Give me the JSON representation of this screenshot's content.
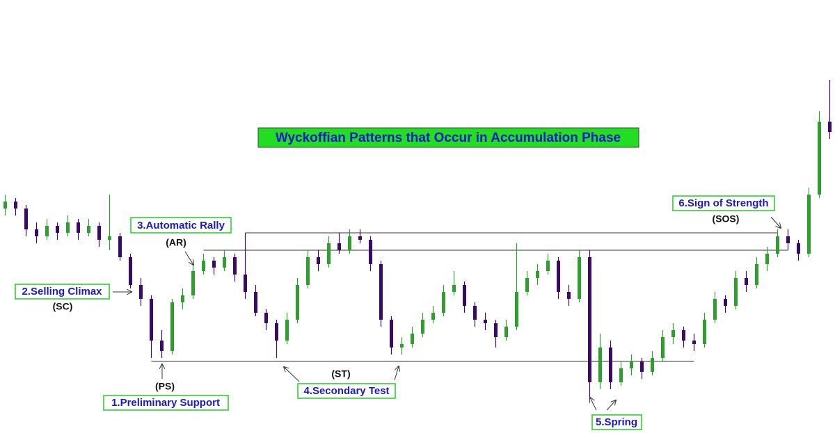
{
  "chart_data": {
    "type": "candlestick",
    "title": "Wyckoffian Patterns that Occur in Accumulation Phase",
    "annotations": {
      "ar_label": "3.Automatic Rally",
      "ar": "(AR)",
      "sc_label": "2.Selling Climax",
      "sc": "(SC)",
      "ps": "(PS)",
      "ps_label": "1.Preliminary Support",
      "st": "(ST)",
      "st_label": "4.Secondary Test",
      "spring_label": "5.Spring",
      "sos_label": "6.Sign of Strength",
      "sos": "(SOS)"
    },
    "up_color": "#2e9e2e",
    "down_color": "#3a0a68",
    "ylim": [
      0,
      100
    ],
    "levels": [
      {
        "value": 16,
        "from": 14,
        "to": 66
      },
      {
        "value": 48,
        "from": 19,
        "to": 75
      },
      {
        "value": 53,
        "from": 23,
        "to": 74
      }
    ],
    "candles": [
      [
        60,
        64,
        58,
        62
      ],
      [
        62,
        63,
        58,
        60
      ],
      [
        60,
        61,
        52,
        54
      ],
      [
        54,
        56,
        50,
        52
      ],
      [
        52,
        57,
        51,
        55
      ],
      [
        55,
        56,
        51,
        53
      ],
      [
        53,
        58,
        52,
        56
      ],
      [
        56,
        57,
        51,
        53
      ],
      [
        53,
        57,
        52,
        55
      ],
      [
        55,
        56,
        49,
        51
      ],
      [
        51,
        64,
        48,
        52
      ],
      [
        52,
        53,
        45,
        46
      ],
      [
        46,
        47,
        37,
        38
      ],
      [
        38,
        40,
        32,
        34
      ],
      [
        34,
        35,
        17,
        22
      ],
      [
        22,
        25,
        17,
        19
      ],
      [
        19,
        34,
        18,
        33
      ],
      [
        33,
        37,
        31,
        35
      ],
      [
        35,
        44,
        34,
        42
      ],
      [
        42,
        47,
        41,
        45
      ],
      [
        45,
        46,
        41,
        43
      ],
      [
        43,
        48,
        42,
        46
      ],
      [
        46,
        47,
        39,
        41
      ],
      [
        41,
        53,
        34,
        36
      ],
      [
        36,
        38,
        29,
        30
      ],
      [
        30,
        31,
        25,
        27
      ],
      [
        27,
        28,
        17,
        22
      ],
      [
        22,
        30,
        21,
        28
      ],
      [
        28,
        40,
        27,
        38
      ],
      [
        38,
        48,
        37,
        46
      ],
      [
        46,
        48,
        42,
        44
      ],
      [
        44,
        52,
        43,
        50
      ],
      [
        50,
        53,
        47,
        48
      ],
      [
        48,
        54,
        47,
        52
      ],
      [
        52,
        54,
        50,
        51
      ],
      [
        51,
        52,
        42,
        44
      ],
      [
        44,
        45,
        26,
        28
      ],
      [
        28,
        29,
        18,
        20
      ],
      [
        20,
        23,
        18,
        21
      ],
      [
        21,
        26,
        20,
        24
      ],
      [
        24,
        30,
        23,
        28
      ],
      [
        28,
        32,
        27,
        30
      ],
      [
        30,
        38,
        29,
        36
      ],
      [
        36,
        42,
        35,
        38
      ],
      [
        38,
        39,
        30,
        32
      ],
      [
        32,
        33,
        26,
        28
      ],
      [
        28,
        30,
        25,
        27
      ],
      [
        27,
        28,
        20,
        23
      ],
      [
        23,
        28,
        22,
        26
      ],
      [
        26,
        50,
        25,
        36
      ],
      [
        36,
        42,
        35,
        40
      ],
      [
        40,
        44,
        38,
        42
      ],
      [
        42,
        47,
        41,
        45
      ],
      [
        45,
        46,
        34,
        36
      ],
      [
        36,
        38,
        32,
        34
      ],
      [
        34,
        48,
        33,
        46
      ],
      [
        46,
        48,
        5,
        10
      ],
      [
        10,
        24,
        8,
        20
      ],
      [
        20,
        22,
        8,
        10
      ],
      [
        10,
        16,
        9,
        14
      ],
      [
        14,
        18,
        12,
        16
      ],
      [
        16,
        17,
        11,
        13
      ],
      [
        13,
        19,
        12,
        17
      ],
      [
        17,
        25,
        16,
        23
      ],
      [
        23,
        27,
        21,
        25
      ],
      [
        25,
        26,
        20,
        22
      ],
      [
        22,
        24,
        19,
        21
      ],
      [
        21,
        30,
        20,
        28
      ],
      [
        28,
        36,
        27,
        34
      ],
      [
        34,
        35,
        30,
        32
      ],
      [
        32,
        42,
        31,
        40
      ],
      [
        40,
        42,
        36,
        38
      ],
      [
        38,
        46,
        37,
        44
      ],
      [
        44,
        49,
        42,
        47
      ],
      [
        47,
        54,
        46,
        52
      ],
      [
        52,
        54,
        48,
        50
      ],
      [
        50,
        51,
        45,
        47
      ],
      [
        47,
        66,
        46,
        64
      ],
      [
        64,
        88,
        63,
        85
      ],
      [
        85,
        97,
        80,
        82
      ]
    ]
  }
}
